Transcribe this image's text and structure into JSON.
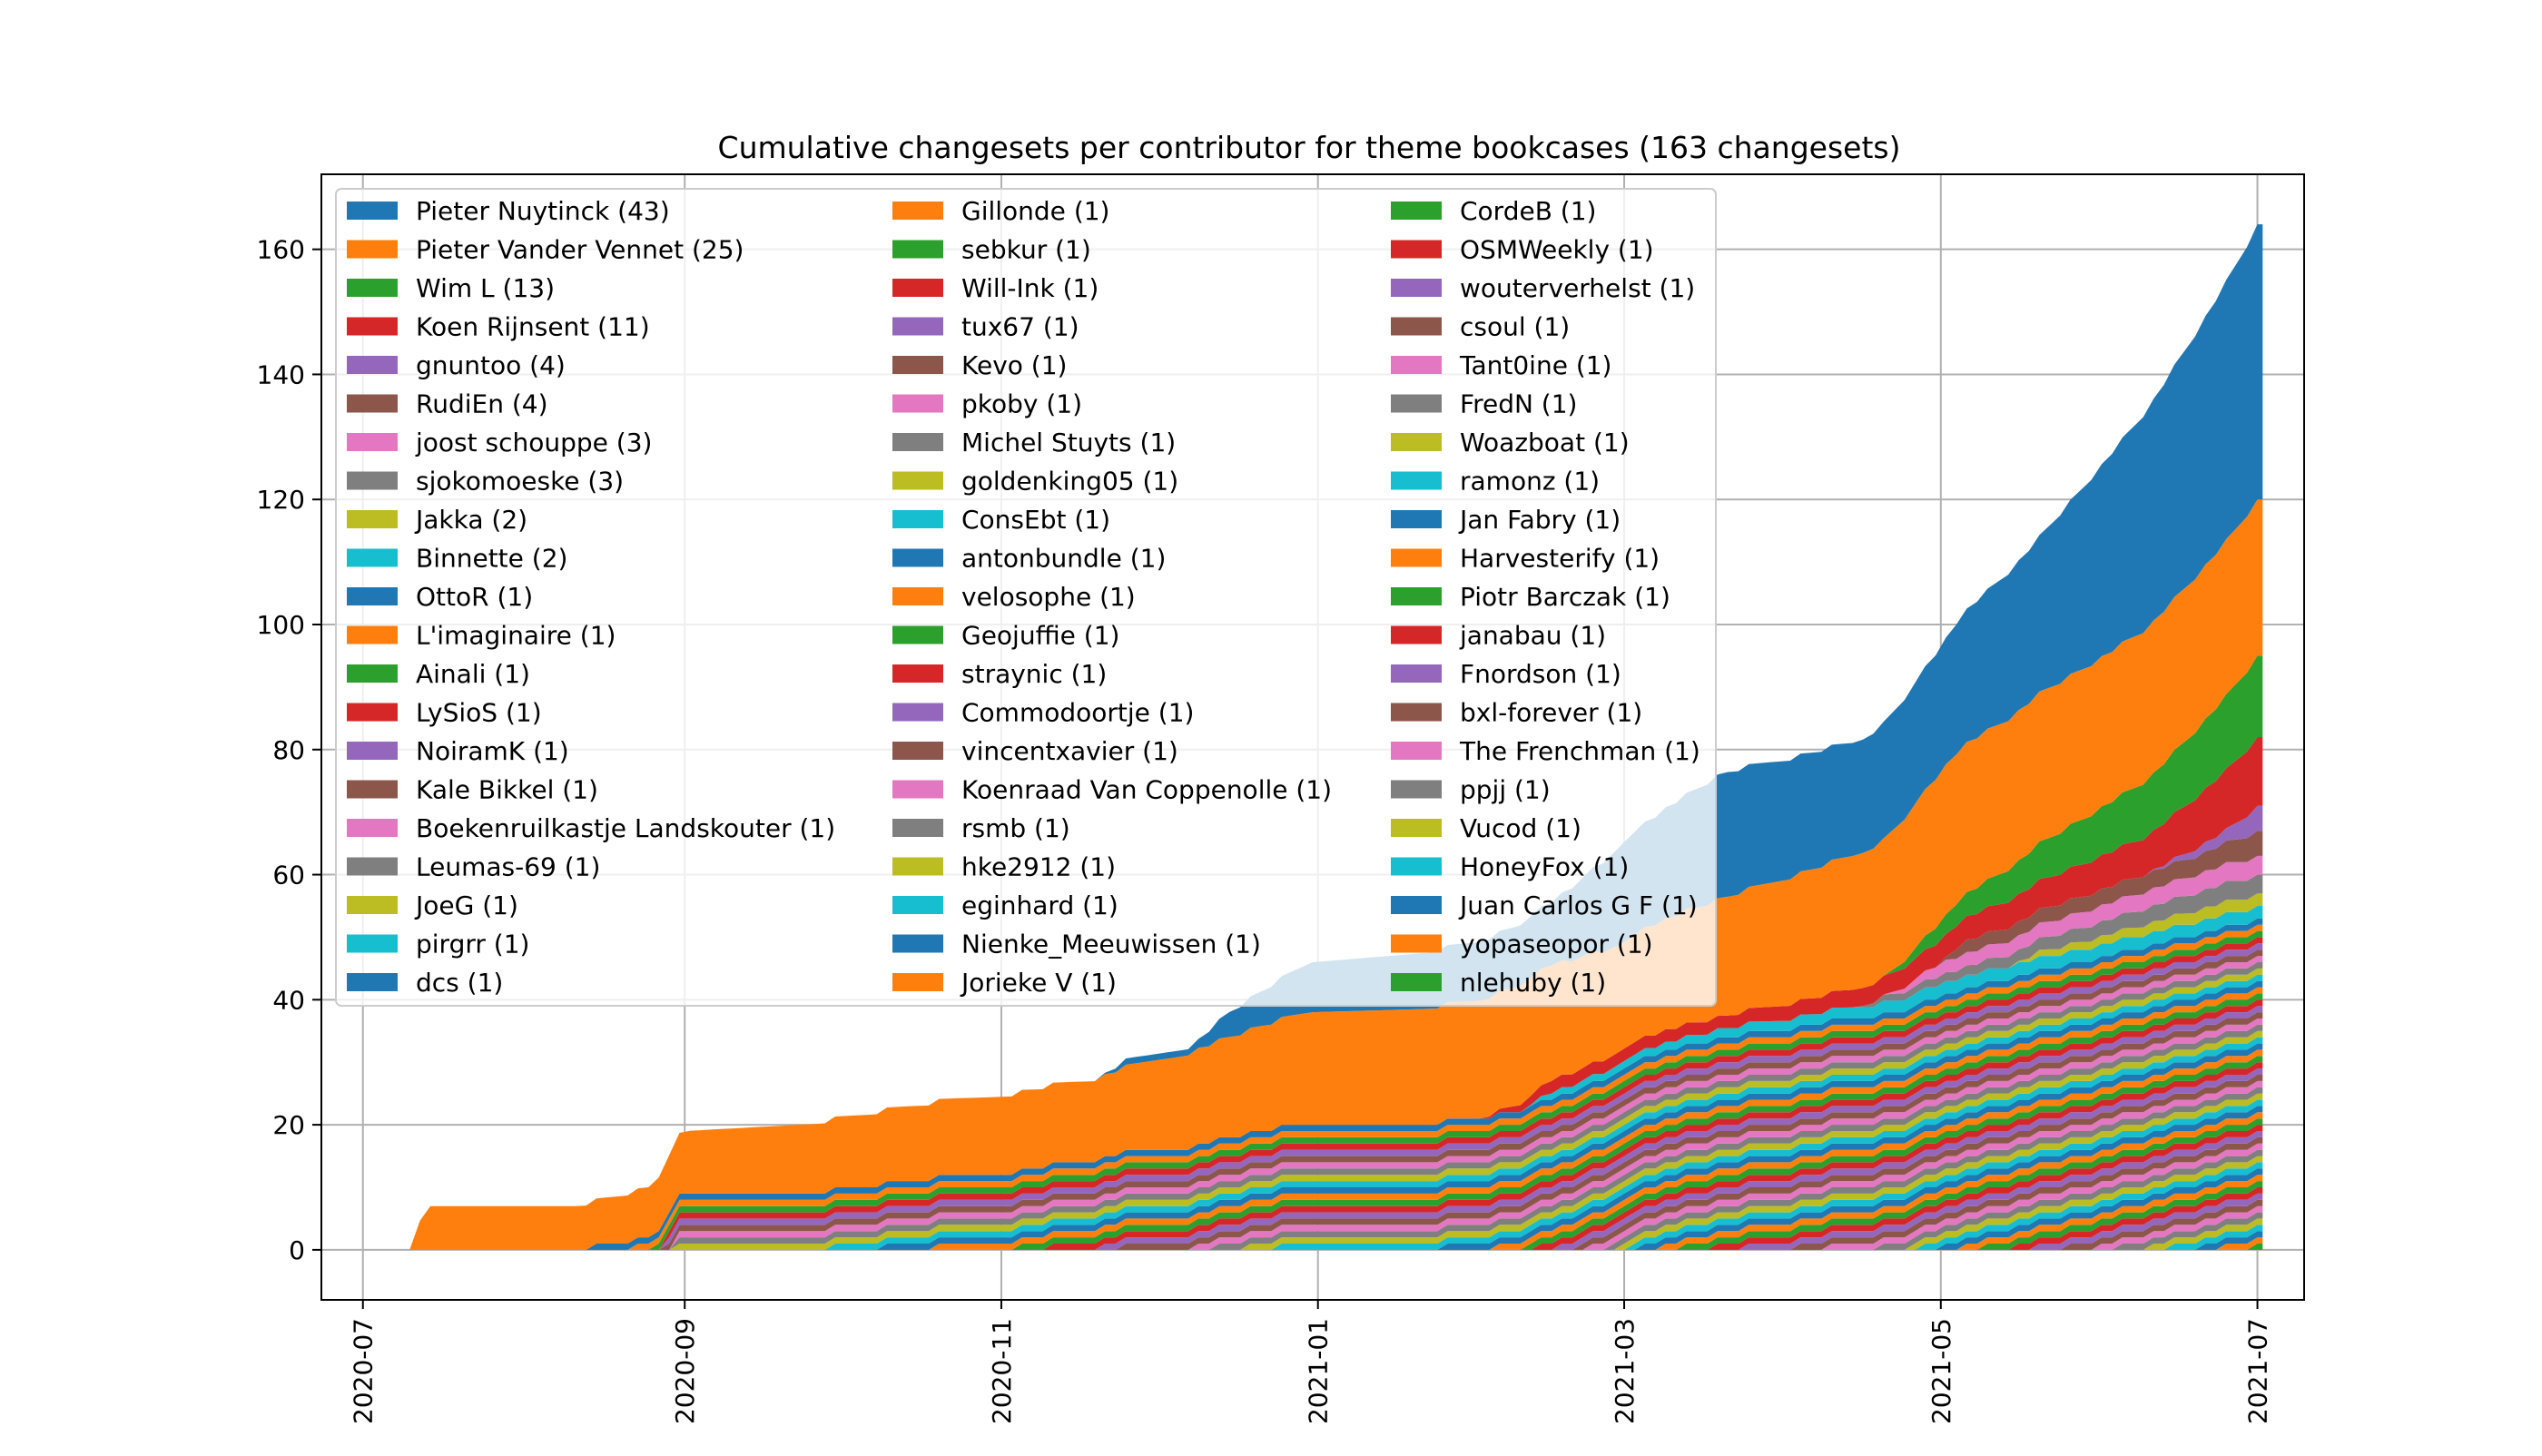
{
  "chart_data": {
    "type": "area",
    "title": "Cumulative changesets per contributor for theme bookcases (163 changesets)",
    "xlabel": "",
    "ylabel": "",
    "x_range": [
      "2020-06-23",
      "2021-07-10"
    ],
    "ylim": [
      -8,
      172
    ],
    "y_ticks": [
      0,
      20,
      40,
      60,
      80,
      100,
      120,
      140,
      160
    ],
    "x_ticks": [
      "2020-07",
      "2020-09",
      "2020-11",
      "2021-01",
      "2021-03",
      "2021-05",
      "2021-07"
    ],
    "grid": true,
    "legend_placement": "upper-left, 3 columns",
    "palette": [
      "#1f77b4",
      "#ff7f0e",
      "#2ca02c",
      "#d62728",
      "#9467bd",
      "#8c564b",
      "#e377c2",
      "#7f7f7f",
      "#bcbd22",
      "#17becf"
    ],
    "series_estimated": [
      {
        "name": "Pieter Nuytinck (43)",
        "points": [
          [
            "2020-07-10",
            0
          ],
          [
            "2020-11-20",
            0
          ],
          [
            "2020-11-25",
            1
          ],
          [
            "2020-12-08",
            1
          ],
          [
            "2020-12-15",
            4
          ],
          [
            "2020-12-31",
            8
          ],
          [
            "2021-02-15",
            10
          ],
          [
            "2021-03-01",
            16
          ],
          [
            "2021-03-20",
            20
          ],
          [
            "2021-04-15",
            18
          ],
          [
            "2021-05-01",
            20
          ],
          [
            "2021-05-20",
            25
          ],
          [
            "2021-06-10",
            35
          ],
          [
            "2021-07-01",
            44
          ]
        ]
      },
      {
        "name": "Pieter Vander Vennet (25)",
        "points": [
          [
            "2020-07-10",
            0
          ],
          [
            "2020-07-13",
            7
          ],
          [
            "2020-08-12",
            7
          ],
          [
            "2020-08-25",
            8
          ],
          [
            "2020-09-01",
            10
          ],
          [
            "2020-10-15",
            12
          ],
          [
            "2020-11-20",
            13
          ],
          [
            "2020-12-31",
            18
          ],
          [
            "2021-02-10",
            19
          ],
          [
            "2021-03-01",
            17
          ],
          [
            "2021-04-20",
            22
          ],
          [
            "2021-05-01",
            24
          ],
          [
            "2021-06-01",
            24
          ],
          [
            "2021-07-01",
            25
          ]
        ]
      },
      {
        "name": "Wim L (13)",
        "points": [
          [
            "2020-07-10",
            0
          ],
          [
            "2021-04-20",
            0
          ],
          [
            "2021-05-01",
            3
          ],
          [
            "2021-05-20",
            6
          ],
          [
            "2021-06-10",
            9
          ],
          [
            "2021-07-01",
            13
          ]
        ]
      },
      {
        "name": "Koen Rijnsent (11)",
        "points": [
          [
            "2020-07-10",
            0
          ],
          [
            "2021-02-01",
            0
          ],
          [
            "2021-02-15",
            2
          ],
          [
            "2021-03-20",
            2
          ],
          [
            "2021-04-20",
            3
          ],
          [
            "2021-05-10",
            4
          ],
          [
            "2021-06-10",
            6
          ],
          [
            "2021-07-01",
            11
          ]
        ]
      },
      {
        "name": "gnuntoo (4)",
        "points": [
          [
            "2020-07-10",
            0
          ],
          [
            "2021-06-10",
            0
          ],
          [
            "2021-06-25",
            2
          ],
          [
            "2021-07-01",
            4
          ]
        ]
      },
      {
        "name": "RudiEn (4)",
        "points": [
          [
            "2020-07-10",
            0
          ],
          [
            "2021-05-01",
            0
          ],
          [
            "2021-05-05",
            2
          ],
          [
            "2021-06-20",
            3
          ],
          [
            "2021-07-01",
            4
          ]
        ]
      },
      {
        "name": "joost schouppe (3)",
        "points": [
          [
            "2020-07-10",
            0
          ],
          [
            "2021-04-20",
            0
          ],
          [
            "2021-05-01",
            2
          ],
          [
            "2021-06-25",
            3
          ]
        ]
      },
      {
        "name": "sjokomoeske (3)",
        "points": [
          [
            "2020-07-10",
            0
          ],
          [
            "2021-04-15",
            0
          ],
          [
            "2021-04-20",
            1
          ],
          [
            "2021-05-20",
            2
          ],
          [
            "2021-06-25",
            3
          ]
        ]
      },
      {
        "name": "Jakka (2)",
        "points": [
          [
            "2020-07-10",
            0
          ],
          [
            "2021-05-15",
            0
          ],
          [
            "2021-05-20",
            1
          ],
          [
            "2021-06-25",
            2
          ]
        ]
      },
      {
        "name": "Binnette (2)",
        "points": [
          [
            "2020-07-10",
            0
          ],
          [
            "2021-02-10",
            0
          ],
          [
            "2021-02-15",
            1
          ],
          [
            "2021-05-01",
            2
          ]
        ]
      }
    ],
    "legend_entries": [
      "Pieter Nuytinck (43)",
      "Pieter Vander Vennet (25)",
      "Wim L (13)",
      "Koen Rijnsent (11)",
      "gnuntoo (4)",
      "RudiEn (4)",
      "joost schouppe (3)",
      "sjokomoeske (3)",
      "Jakka (2)",
      "Binnette (2)",
      "OttoR (1)",
      "L'imaginaire (1)",
      "Ainali (1)",
      "LySioS (1)",
      "NoiramK (1)",
      "Kale Bikkel (1)",
      "Boekenruilkastje Landskouter (1)",
      "Leumas-69 (1)",
      "JoeG (1)",
      "pirgrr (1)",
      "dcs (1)",
      "Gillonde (1)",
      "sebkur (1)",
      "Will-Ink (1)",
      "tux67 (1)",
      "Kevo (1)",
      "pkoby (1)",
      "Michel Stuyts (1)",
      "goldenking05 (1)",
      "ConsEbt (1)",
      "antonbundle (1)",
      "velosophe (1)",
      "Geojuffie (1)",
      "straynic (1)",
      "Commodoortje (1)",
      "vincentxavier (1)",
      "Koenraad Van Coppenolle (1)",
      "rsmb (1)",
      "hke2912 (1)",
      "eginhard (1)",
      "Nienke_Meeuwissen (1)",
      "Jorieke V (1)",
      "CordeB (1)",
      "OSMWeekly (1)",
      "wouterverhelst (1)",
      "csoul (1)",
      "Tant0ine (1)",
      "FredN (1)",
      "Woazboat (1)",
      "ramonz (1)",
      "Jan Fabry (1)",
      "Harvesterify (1)",
      "Piotr Barczak (1)",
      "janabau (1)",
      "Fnordson (1)",
      "bxl-forever (1)",
      "The Frenchman (1)",
      "ppjj (1)",
      "Vucod (1)",
      "HoneyFox (1)",
      "Juan Carlos G F (1)",
      "yopaseopor (1)",
      "nlehuby (1)"
    ],
    "single_contributor_dates": [
      "2020-08-15",
      "2020-08-22",
      "2020-08-27",
      "2020-08-28",
      "2020-08-29",
      "2020-08-29",
      "2020-08-30",
      "2020-08-30",
      "2020-08-31",
      "2020-09-30",
      "2020-10-10",
      "2020-10-20",
      "2020-11-05",
      "2020-11-10",
      "2020-11-20",
      "2020-11-25",
      "2020-12-08",
      "2020-12-12",
      "2020-12-18",
      "2020-12-24",
      "2021-01-25",
      "2021-02-05",
      "2021-02-10",
      "2021-02-13",
      "2021-02-16",
      "2021-02-20",
      "2021-02-23",
      "2021-02-26",
      "2021-03-01",
      "2021-03-03",
      "2021-03-05",
      "2021-03-08",
      "2021-03-12",
      "2021-03-18",
      "2021-03-25",
      "2021-04-03",
      "2021-04-10",
      "2021-04-20",
      "2021-04-25",
      "2021-04-28",
      "2021-05-01",
      "2021-05-05",
      "2021-05-10",
      "2021-05-15",
      "2021-05-20",
      "2021-05-25",
      "2021-06-01",
      "2021-06-05",
      "2021-06-10",
      "2021-06-15",
      "2021-06-20",
      "2021-06-25",
      "2021-07-01"
    ]
  }
}
